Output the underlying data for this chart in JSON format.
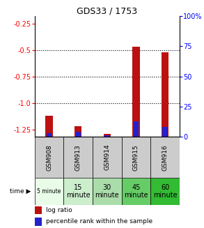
{
  "title": "GDS33 / 1753",
  "samples": [
    "GSM908",
    "GSM913",
    "GSM914",
    "GSM915",
    "GSM916"
  ],
  "time_labels": [
    "5 minute",
    "15\nminute",
    "30\nminute",
    "45\nminute",
    "60\nminute"
  ],
  "log_ratio": [
    -1.12,
    -1.22,
    -1.295,
    -0.47,
    -0.52
  ],
  "percentile_rank": [
    3,
    4,
    1,
    13,
    8
  ],
  "ylim_left": [
    -1.32,
    -0.18
  ],
  "ylim_right": [
    0,
    100
  ],
  "yticks_left": [
    -1.25,
    -1.0,
    -0.75,
    -0.5,
    -0.25
  ],
  "yticks_right": [
    0,
    25,
    50,
    75,
    100
  ],
  "log_ratio_color": "#bb1111",
  "percentile_color": "#2222cc",
  "sample_bg": "#cccccc",
  "time_bg_colors": [
    "#e8fce8",
    "#cceecc",
    "#aaddaa",
    "#66cc66",
    "#33bb33"
  ]
}
